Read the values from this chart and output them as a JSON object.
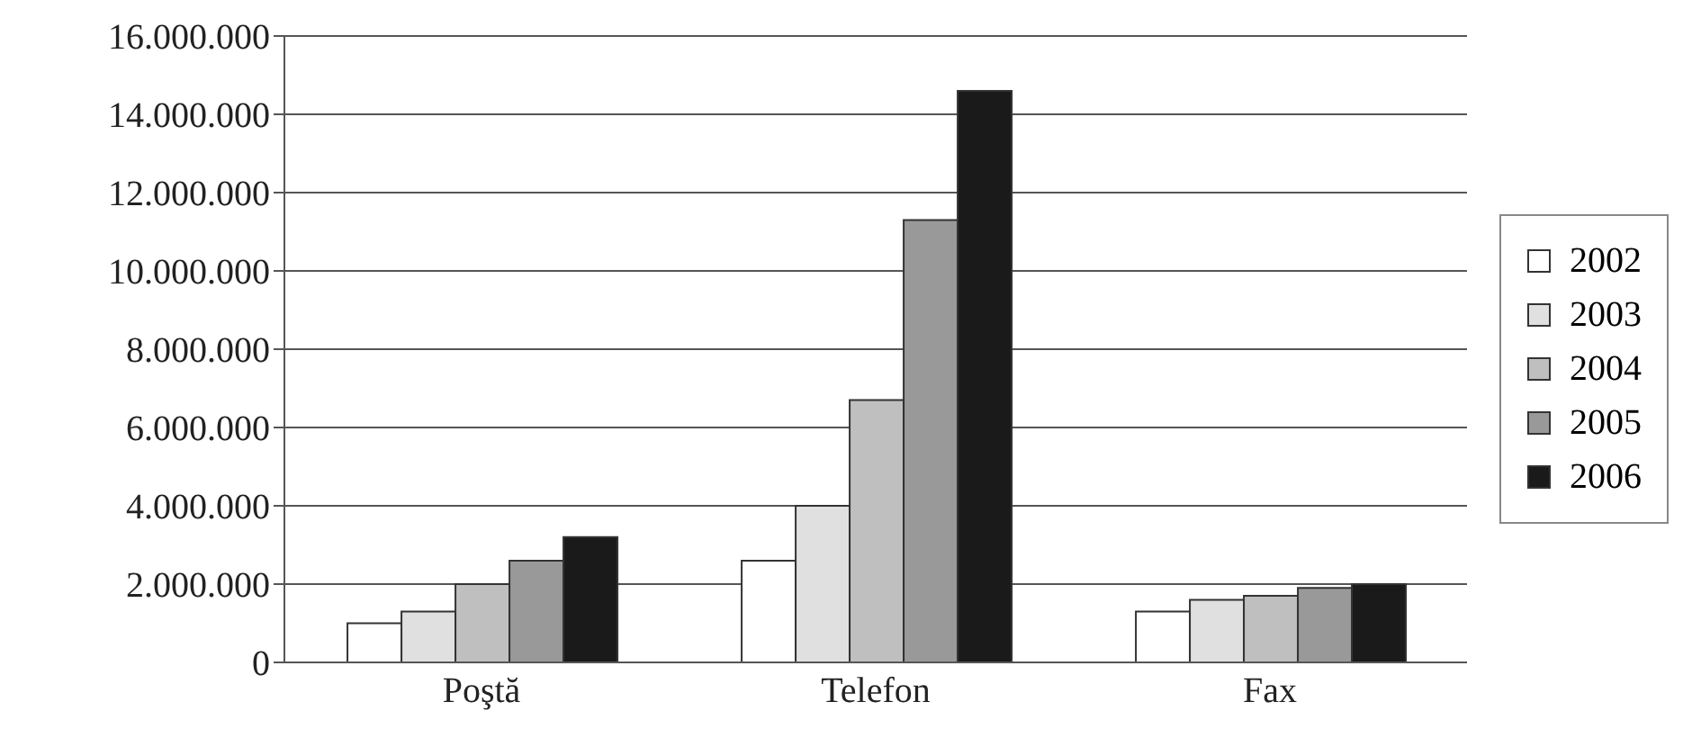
{
  "chart_data": {
    "type": "bar",
    "categories": [
      "Poştă",
      "Telefon",
      "Fax"
    ],
    "series": [
      {
        "name": "2002",
        "color": "#ffffff",
        "values": [
          1000000,
          2600000,
          1300000
        ]
      },
      {
        "name": "2003",
        "color": "#e0e0e0",
        "values": [
          1300000,
          4000000,
          1600000
        ]
      },
      {
        "name": "2004",
        "color": "#bfbfbf",
        "values": [
          2000000,
          6700000,
          1700000
        ]
      },
      {
        "name": "2005",
        "color": "#999999",
        "values": [
          2600000,
          11300000,
          1900000
        ]
      },
      {
        "name": "2006",
        "color": "#1a1a1a",
        "values": [
          3200000,
          14600000,
          2000000
        ]
      }
    ],
    "ylim": [
      0,
      16000000
    ],
    "yticks": [
      {
        "value": 0,
        "label": "0"
      },
      {
        "value": 2000000,
        "label": "2.000.000"
      },
      {
        "value": 4000000,
        "label": "4.000.000"
      },
      {
        "value": 6000000,
        "label": "6.000.000"
      },
      {
        "value": 8000000,
        "label": "8.000.000"
      },
      {
        "value": 10000000,
        "label": "10.000.000"
      },
      {
        "value": 12000000,
        "label": "12.000.000"
      },
      {
        "value": 14000000,
        "label": "14.000.000"
      },
      {
        "value": 16000000,
        "label": "16.000.000"
      }
    ],
    "grid": "y",
    "legend": "right"
  }
}
